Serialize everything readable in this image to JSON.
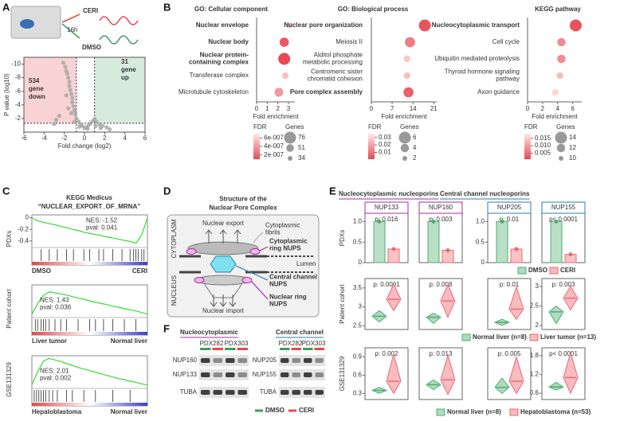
{
  "panel_labels": [
    "A",
    "B",
    "C",
    "D",
    "E",
    "F"
  ],
  "schematic": {
    "treatment": "CERI",
    "time": "16h",
    "control": "DMSO"
  },
  "chart_data": [
    {
      "type": "scatter",
      "xlabel": "Fold change (log2)",
      "ylabel": "P value (log10)",
      "xlim": [
        -6,
        6
      ],
      "ylim": [
        0,
        -11
      ],
      "xticks": [
        -6,
        -4,
        -2,
        0,
        2,
        4,
        6
      ],
      "yticks": [
        -10,
        -8,
        -6,
        -4,
        -2
      ],
      "thresholds_x": [
        -0.8,
        1
      ],
      "threshold_y": -1.3,
      "regions": {
        "down": "#f9d3d3",
        "up": "#d7ebdd"
      },
      "annotations": [
        {
          "text": [
            "534",
            "gene",
            "down"
          ],
          "color": "#e8474f"
        },
        {
          "text": [
            "31",
            "gene",
            "up"
          ],
          "color": "#3f9a63"
        }
      ],
      "color": "#a8a8a8",
      "x": [
        -2.1,
        -1.9,
        -1.8,
        -1.7,
        -1.6,
        -1.5,
        -1.5,
        -1.4,
        -1.3,
        -1.2,
        -1.2,
        -1.1,
        -1.0,
        -0.9,
        -0.8,
        -0.6,
        -0.4,
        -0.2,
        0,
        0.2,
        0.4,
        0.6,
        0.8,
        1.0,
        1.2,
        1.5,
        1.8,
        2.2,
        -2.5,
        -3.0,
        -2.8,
        -1.6,
        -1.3,
        -1.0,
        -0.5,
        0.3,
        1.1,
        1.6,
        2.5,
        -1.8
      ],
      "y": [
        -10.2,
        -9.6,
        -9.0,
        -8.6,
        -8.0,
        -7.4,
        -6.8,
        -6.2,
        -5.6,
        -5.0,
        -4.4,
        -3.8,
        -3.2,
        -2.6,
        -2.0,
        -1.6,
        -1.2,
        -0.9,
        -0.6,
        -0.7,
        -1.0,
        -1.3,
        -1.6,
        -1.9,
        -1.5,
        -1.1,
        -0.9,
        -0.7,
        -2.4,
        -1.2,
        -1.8,
        -3.5,
        -2.8,
        -1.5,
        -0.8,
        -0.5,
        -0.9,
        -0.6,
        -0.4,
        -5.4
      ]
    },
    {
      "type": "bubble",
      "title": "GO: Cellular component",
      "categories": [
        "Nuclear envelope",
        "Nuclear body",
        [
          "Nuclear protein-",
          "containing complex"
        ],
        "Transferase complex",
        "Microtubule cytoskeleton"
      ],
      "bold": [
        true,
        true,
        true,
        false,
        false
      ],
      "values": [
        3.1,
        2.6,
        2.6,
        2.7,
        2.1
      ],
      "fdr": [
        6e-07,
        1.5e-07,
        1e-07,
        5.5e-07,
        4e-07
      ],
      "genes": [
        40,
        60,
        76,
        45,
        58
      ],
      "xlabel": "Fold enrichment",
      "xlim": [
        0,
        3.6
      ],
      "xticks": [
        0,
        1,
        2,
        3
      ],
      "fdr_label": "FDR",
      "fdr_ticks": [
        {
          "value": 6e-07,
          "label": "6e-007"
        },
        {
          "value": 4e-07,
          "label": "4e-007"
        },
        {
          "value": 2e-07,
          "label": "2e-007"
        }
      ],
      "fdr_lim": [
        1e-07,
        7e-07
      ],
      "size_label": "Genes",
      "size_ticks": [
        76,
        51,
        34
      ],
      "colors": [
        "#e84a55",
        "#fde8ea"
      ]
    },
    {
      "type": "bubble",
      "title": "GO: Biological process",
      "categories": [
        "Nuclear pore organization",
        "Meiosis II",
        [
          "Alditol phosphate",
          "metabolic processing"
        ],
        [
          "Centromeric sister",
          "chromatid cohesion"
        ],
        "Pore complex assembly"
      ],
      "bold": [
        true,
        false,
        false,
        false,
        true
      ],
      "values": [
        18,
        13,
        12,
        12,
        12.5
      ],
      "fdr": [
        0.003,
        0.012,
        0.028,
        0.026,
        0.006
      ],
      "genes": [
        6,
        5,
        3,
        3,
        5
      ],
      "xlabel": "Fold enrichment",
      "xlim": [
        0,
        22
      ],
      "xticks": [
        0,
        7,
        14,
        21
      ],
      "fdr_label": "FDR",
      "fdr_ticks": [
        0.03,
        0.02,
        0.01
      ],
      "fdr_lim": [
        0.001,
        0.035
      ],
      "size_label": "Genes",
      "size_ticks": [
        6,
        4,
        2
      ],
      "colors": [
        "#e84a55",
        "#fde8ea"
      ]
    },
    {
      "type": "bubble",
      "title": "KEGG pathway",
      "categories": [
        "Nucleocytoplasmic transport",
        "Cell cycle",
        "Ubiquitin mediated proteolysis",
        [
          "Thyroid hormone signaling",
          "pathway"
        ],
        "Axon guidance"
      ],
      "bold": [
        true,
        false,
        false,
        false,
        false
      ],
      "values": [
        6.4,
        4.5,
        4.5,
        4.3,
        3.7
      ],
      "fdr": [
        0.002,
        0.008,
        0.008,
        0.013,
        0.016
      ],
      "genes": [
        14,
        12,
        12,
        11,
        11
      ],
      "xlabel": "Fold enrichment",
      "xlim": [
        0,
        7.2
      ],
      "xticks": [
        0,
        2,
        4,
        6
      ],
      "fdr_label": "FDR",
      "fdr_ticks": [
        0.015,
        {
          "value": 0.01,
          "label": "0.010"
        },
        0.005
      ],
      "fdr_lim": [
        0.001,
        0.018
      ],
      "size_label": "Genes",
      "size_ticks": [
        14,
        12,
        10
      ],
      "colors": [
        "#e84a55",
        "#fde8ea"
      ]
    },
    {
      "type": "line",
      "title": "KEGG Medicus",
      "subtitle": "“NUCLEAR_EXPORT_OF_MRNA”",
      "ylabel": "PDXs",
      "color": "#33dd33",
      "xlim": [
        0,
        1
      ],
      "x": [
        0,
        0.05,
        0.1,
        0.15,
        0.2,
        0.25,
        0.3,
        0.35,
        0.4,
        0.45,
        0.5,
        0.55,
        0.6,
        0.65,
        0.7,
        0.75,
        0.8,
        0.85,
        0.9,
        0.95,
        1
      ],
      "values": [
        0,
        -0.05,
        -0.08,
        -0.1,
        -0.12,
        -0.15,
        -0.17,
        -0.2,
        -0.22,
        -0.25,
        -0.27,
        -0.29,
        -0.31,
        -0.33,
        -0.35,
        -0.37,
        -0.39,
        -0.41,
        -0.44,
        -0.3,
        0
      ],
      "ylim": [
        -0.5,
        0.05
      ],
      "yticks": [
        0,
        -0.2,
        -0.4
      ],
      "hits": [
        0.08,
        0.15,
        0.22,
        0.3,
        0.36,
        0.45,
        0.5,
        0.58,
        0.62,
        0.7,
        0.78,
        0.85,
        0.88,
        0.9,
        0.92,
        0.95,
        0.97
      ],
      "annotation": [
        "NES: -1.52",
        "pval: 0.041"
      ],
      "labels": [
        "DMSO",
        "CERI"
      ],
      "label_colors": [
        "#3f9a63",
        "#e8474f"
      ],
      "gradient": [
        "#e0474c",
        "#ffffff",
        "#3d3dc8"
      ]
    },
    {
      "type": "line",
      "ylabel": "Patient cohort",
      "color": "#33dd33",
      "xlim": [
        0,
        1
      ],
      "x": [
        0,
        0.05,
        0.1,
        0.15,
        0.2,
        0.25,
        0.3,
        0.35,
        0.4,
        0.45,
        0.5,
        0.55,
        0.6,
        0.65,
        0.7,
        0.75,
        0.8,
        0.85,
        0.9,
        0.95,
        1
      ],
      "values": [
        0,
        0.2,
        0.35,
        0.42,
        0.4,
        0.38,
        0.36,
        0.33,
        0.3,
        0.28,
        0.25,
        0.22,
        0.2,
        0.18,
        0.15,
        0.13,
        0.1,
        0.08,
        0.06,
        0.03,
        0
      ],
      "ylim": [
        -0.05,
        0.55
      ],
      "hits": [
        0.03,
        0.05,
        0.08,
        0.1,
        0.12,
        0.15,
        0.2,
        0.25,
        0.3,
        0.4,
        0.5,
        0.55,
        0.62,
        0.7,
        0.8,
        0.9
      ],
      "annotation": [
        "NES: 1.43",
        "pval: 0.036"
      ],
      "labels": [
        "Liver tumor",
        "Normal liver"
      ],
      "label_colors": [
        "#e8474f",
        "#3f9a63"
      ],
      "gradient": [
        "#e0474c",
        "#ffffff",
        "#3d3dc8"
      ]
    },
    {
      "type": "line",
      "ylabel": "GSE131329",
      "color": "#33dd33",
      "xlim": [
        0,
        1
      ],
      "x": [
        0,
        0.05,
        0.1,
        0.15,
        0.2,
        0.25,
        0.3,
        0.35,
        0.4,
        0.45,
        0.5,
        0.55,
        0.6,
        0.65,
        0.7,
        0.75,
        0.8,
        0.85,
        0.9,
        0.95,
        1
      ],
      "values": [
        0,
        0.25,
        0.45,
        0.5,
        0.47,
        0.44,
        0.4,
        0.37,
        0.33,
        0.3,
        0.27,
        0.24,
        0.21,
        0.18,
        0.15,
        0.12,
        0.1,
        0.07,
        0.05,
        0.02,
        0
      ],
      "ylim": [
        -0.05,
        0.55
      ],
      "hits": [
        0.02,
        0.04,
        0.06,
        0.08,
        0.1,
        0.12,
        0.15,
        0.18,
        0.22,
        0.3,
        0.35,
        0.45,
        0.55,
        0.7,
        0.85
      ],
      "annotation": [
        "NES: 2.01",
        "pval: 0.002"
      ],
      "labels": [
        "Hepatoblastoma",
        "Normal liver"
      ],
      "label_colors": [
        "#e8474f",
        "#3f9a63"
      ],
      "gradient": [
        "#e0474c",
        "#ffffff",
        "#3d3dc8"
      ]
    },
    {
      "type": "bar",
      "ylabel": "PDXs",
      "categories": [
        "NUP133",
        "NUP160",
        "NUP205",
        "NUP155"
      ],
      "pvalues": [
        "p: 0.016",
        "p: 0.003",
        "p: 0.01",
        "p< 0.0001"
      ],
      "series": [
        {
          "name": "DMSO",
          "color": "#4fae72",
          "values": [
            1,
            1,
            1,
            1
          ]
        },
        {
          "name": "CERI",
          "color": "#ec6a72",
          "values": [
            0.33,
            0.3,
            0.33,
            0.2
          ]
        }
      ],
      "axes": [
        {
          "ylim": [
            0,
            1.2
          ],
          "yticks": [
            0,
            0.5,
            {
              "value": 1,
              "label": "1.0"
            }
          ]
        },
        {
          "ylim": [
            0,
            1.2
          ]
        },
        {
          "ylim": [
            0,
            1.2
          ],
          "yticks": [
            0,
            0.5,
            {
              "value": 1,
              "label": "1.0"
            }
          ]
        },
        {
          "ylim": [
            0,
            1.2
          ]
        }
      ]
    },
    {
      "type": "violin",
      "ylabel": "Patient cohort",
      "pvalues": [
        "p: 0.0001",
        "p: 0.008",
        "p: 0.01",
        "p: 0.003"
      ],
      "series": [
        {
          "name": "Normal liver (n=8)",
          "color": "#4fae72",
          "values": [
            [
              2.6,
              2.75,
              2.9
            ],
            [
              2.75,
              2.9,
              3.0
            ],
            [
              2.7,
              2.85,
              3.0
            ],
            [
              2.05,
              2.35,
              2.5
            ]
          ]
        },
        {
          "name": "Liver tumor (n=13)",
          "color": "#ec6a72",
          "values": [
            [
              2.9,
              3.2,
              3.6
            ],
            [
              2.9,
              3.3,
              3.7
            ],
            [
              3.0,
              3.5,
              4.6
            ],
            [
              2.4,
              2.7,
              3.0
            ]
          ]
        }
      ],
      "axes": [
        {
          "ylim": [
            2.4,
            3.75
          ],
          "yticks": [
            2.5,
            3,
            3.5
          ]
        },
        {
          "ylim": [
            2.6,
            3.85
          ]
        },
        {
          "ylim": [
            2.5,
            5
          ]
        },
        {
          "ylim": [
            1.9,
            3.2
          ],
          "yticks": [
            2,
            2.5,
            3
          ]
        }
      ]
    },
    {
      "type": "violin",
      "ylabel": "GSE131329",
      "pvalues": [
        "p: 0.002",
        "p: 0.013",
        "p: 0.005",
        "p< 0.0001"
      ],
      "series": [
        {
          "name": "Normal liver (n=8)",
          "color": "#4fae72",
          "values": [
            [
              0.3,
              0.35,
              0.4
            ],
            [
              0.4,
              0.5,
              0.6
            ],
            [
              0.3,
              0.4,
              0.55
            ],
            [
              0.7,
              0.8,
              0.95
            ]
          ]
        },
        {
          "name": "Hepatoblastoma (n=53)",
          "color": "#ec6a72",
          "values": [
            [
              0.3,
              0.5,
              0.95
            ],
            [
              0.3,
              0.6,
              1.1
            ],
            [
              0.3,
              0.5,
              0.9
            ],
            [
              0.6,
              1.1,
              1.9
            ]
          ]
        }
      ],
      "axes": [
        {
          "ylim": [
            0.2,
            1.05
          ],
          "yticks": [
            0.3,
            0.6,
            0.9
          ]
        },
        {
          "ylim": [
            0.2,
            1.25
          ]
        },
        {
          "ylim": [
            0.2,
            1.05
          ]
        },
        {
          "ylim": [
            0.4,
            2.05
          ],
          "yticks": [
            0.6,
            1.2,
            1.8
          ]
        }
      ]
    }
  ],
  "nup_groups": [
    {
      "text": "Nucleocytoplasmic nucleoporins",
      "color": "#a0309a"
    },
    {
      "text": "Central channel nucleoporins",
      "color": "#2a7fa5"
    }
  ],
  "npc": {
    "title": [
      "Structure of the",
      "Nuclear Pore Complex"
    ],
    "cytoplasm": "CYTOPLASM",
    "nucleus": "NUCLEUS",
    "export": "Nuclear export",
    "fibrils": [
      "Cytoplasmic",
      "fibrils"
    ],
    "cyto_ring": [
      "Cytoplasmic",
      "ring NUPS"
    ],
    "lumen": "Lumen",
    "central": [
      "Central channel",
      "NUPS"
    ],
    "nuclear_ring": [
      "Nuclear ring",
      "NUPS"
    ],
    "import": "Nuclear import"
  },
  "blot": {
    "groups": [
      {
        "title": "Nucleocytoplasmic",
        "color": "#a0309a",
        "samples": [
          "PDX282",
          "PDX303"
        ],
        "proteins": [
          "NUP160",
          "NUP133"
        ],
        "loading": "TUBA"
      },
      {
        "title": "Central channel",
        "color": "#2a7fa5",
        "samples": [
          "PDX282",
          "PDX303"
        ],
        "proteins": [
          "NUP205",
          "NUP155"
        ],
        "loading": "TUBA"
      }
    ],
    "legend": [
      {
        "name": "DMSO",
        "color": "#3f9a63"
      },
      {
        "name": "CERI",
        "color": "#e8474f"
      }
    ]
  }
}
